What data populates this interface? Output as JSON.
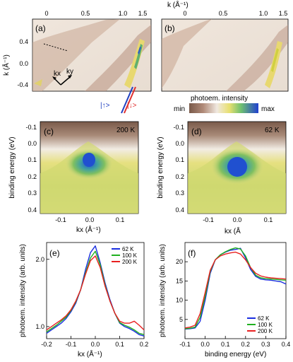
{
  "top": {
    "xaxis_label": "k (Å⁻¹)",
    "xticks": [
      "0",
      "0.5",
      "1.0",
      "1.5"
    ],
    "left_ylabel": "k (Å⁻¹)",
    "left_yticks": [
      "0.4",
      "0.0",
      "-0.4"
    ],
    "panel_a": "(a)",
    "panel_b": "(b)",
    "kx_label": "kx",
    "ky_label": "ky",
    "spin_up": "|↑>",
    "spin_down": "|↓>",
    "colorbar_title": "photoem. intensity",
    "colorbar_min": "min",
    "colorbar_max": "max"
  },
  "middle": {
    "panel_c": "(c)",
    "panel_d": "(d)",
    "temp_c": "200 K",
    "temp_d": "62 K",
    "ylabel": "binding energy (eV)",
    "yticks": [
      "-0.1",
      "0.0",
      "0.1",
      "0.2",
      "0.3",
      "0.4"
    ],
    "xticks": [
      "-0.1",
      "0.0",
      "0.1"
    ],
    "xlabel_c": "kx (Å⁻¹)",
    "xlabel_d": "kx (Å"
  },
  "colors": {
    "spin_blue": "#2040c0",
    "spin_red": "#e03030",
    "cmap_low": "#a07a62",
    "cmap_mid": "#e8e070",
    "cmap_high": "#2050d0"
  },
  "chart_data": [
    {
      "type": "line",
      "panel": "(e)",
      "xlabel": "kx (Å⁻¹)",
      "ylabel": "photoem. intensity (arb. units)",
      "xlim": [
        -0.2,
        0.2
      ],
      "ylim": [
        0.82,
        2.25
      ],
      "xticks": [
        "-0.2",
        "-0.1",
        "0.0",
        "0.1",
        "0.2"
      ],
      "yticks": [
        "1.0",
        "2.0"
      ],
      "legend_position": "top-right",
      "x": [
        -0.2,
        -0.18,
        -0.16,
        -0.14,
        -0.12,
        -0.1,
        -0.08,
        -0.06,
        -0.04,
        -0.02,
        0.0,
        0.02,
        0.04,
        0.06,
        0.08,
        0.1,
        0.12,
        0.14,
        0.16,
        0.18,
        0.2
      ],
      "series": [
        {
          "name": "62 K",
          "color": "#1a2ee0",
          "values": [
            0.9,
            0.95,
            1.0,
            1.05,
            1.12,
            1.22,
            1.35,
            1.55,
            1.85,
            2.1,
            2.2,
            1.95,
            1.65,
            1.4,
            1.2,
            1.05,
            1.0,
            0.97,
            0.93,
            0.88,
            0.86
          ]
        },
        {
          "name": "100 K",
          "color": "#20b020",
          "values": [
            0.92,
            0.97,
            1.02,
            1.08,
            1.14,
            1.24,
            1.37,
            1.55,
            1.8,
            2.02,
            2.12,
            1.92,
            1.62,
            1.38,
            1.2,
            1.06,
            1.02,
            0.99,
            0.95,
            0.9,
            0.88
          ]
        },
        {
          "name": "200 K",
          "color": "#e82020",
          "values": [
            0.95,
            1.0,
            1.05,
            1.1,
            1.16,
            1.25,
            1.38,
            1.55,
            1.78,
            1.98,
            2.05,
            1.88,
            1.6,
            1.38,
            1.2,
            1.08,
            1.05,
            1.05,
            1.08,
            1.02,
            0.95
          ]
        }
      ]
    },
    {
      "type": "line",
      "panel": "(f)",
      "xlabel": "binding energy (eV)",
      "ylim": [
        0,
        25
      ],
      "xlim": [
        -0.1,
        0.4
      ],
      "xticks": [
        "-0.1",
        "0.0",
        "0.1",
        "0.2",
        "0.3",
        "0.4"
      ],
      "yticks": [
        "5",
        "10",
        "15",
        "20"
      ],
      "legend_position": "bottom-right",
      "x": [
        -0.1,
        -0.075,
        -0.05,
        -0.025,
        0.0,
        0.025,
        0.05,
        0.075,
        0.1,
        0.125,
        0.15,
        0.175,
        0.2,
        0.225,
        0.25,
        0.275,
        0.3,
        0.325,
        0.35,
        0.375,
        0.4
      ],
      "series": [
        {
          "name": "62 K",
          "color": "#1a2ee0",
          "values": [
            2.5,
            2.6,
            2.8,
            4.5,
            10.0,
            17.0,
            20.5,
            21.8,
            22.5,
            23.0,
            23.2,
            23.5,
            21.0,
            18.0,
            16.2,
            15.5,
            15.3,
            15.2,
            15.0,
            14.8,
            14.2
          ]
        },
        {
          "name": "100 K",
          "color": "#20b020",
          "values": [
            2.6,
            2.7,
            3.0,
            5.5,
            11.0,
            17.5,
            20.5,
            21.8,
            22.6,
            23.2,
            23.6,
            23.3,
            21.5,
            18.5,
            16.5,
            15.8,
            15.6,
            15.5,
            15.4,
            15.3,
            15.2
          ]
        },
        {
          "name": "200 K",
          "color": "#e82020",
          "values": [
            2.8,
            3.0,
            3.5,
            6.5,
            12.0,
            17.8,
            20.5,
            21.5,
            22.0,
            22.3,
            22.5,
            22.0,
            20.5,
            18.5,
            17.0,
            16.3,
            16.0,
            15.8,
            15.7,
            15.6,
            15.5
          ]
        }
      ]
    }
  ]
}
